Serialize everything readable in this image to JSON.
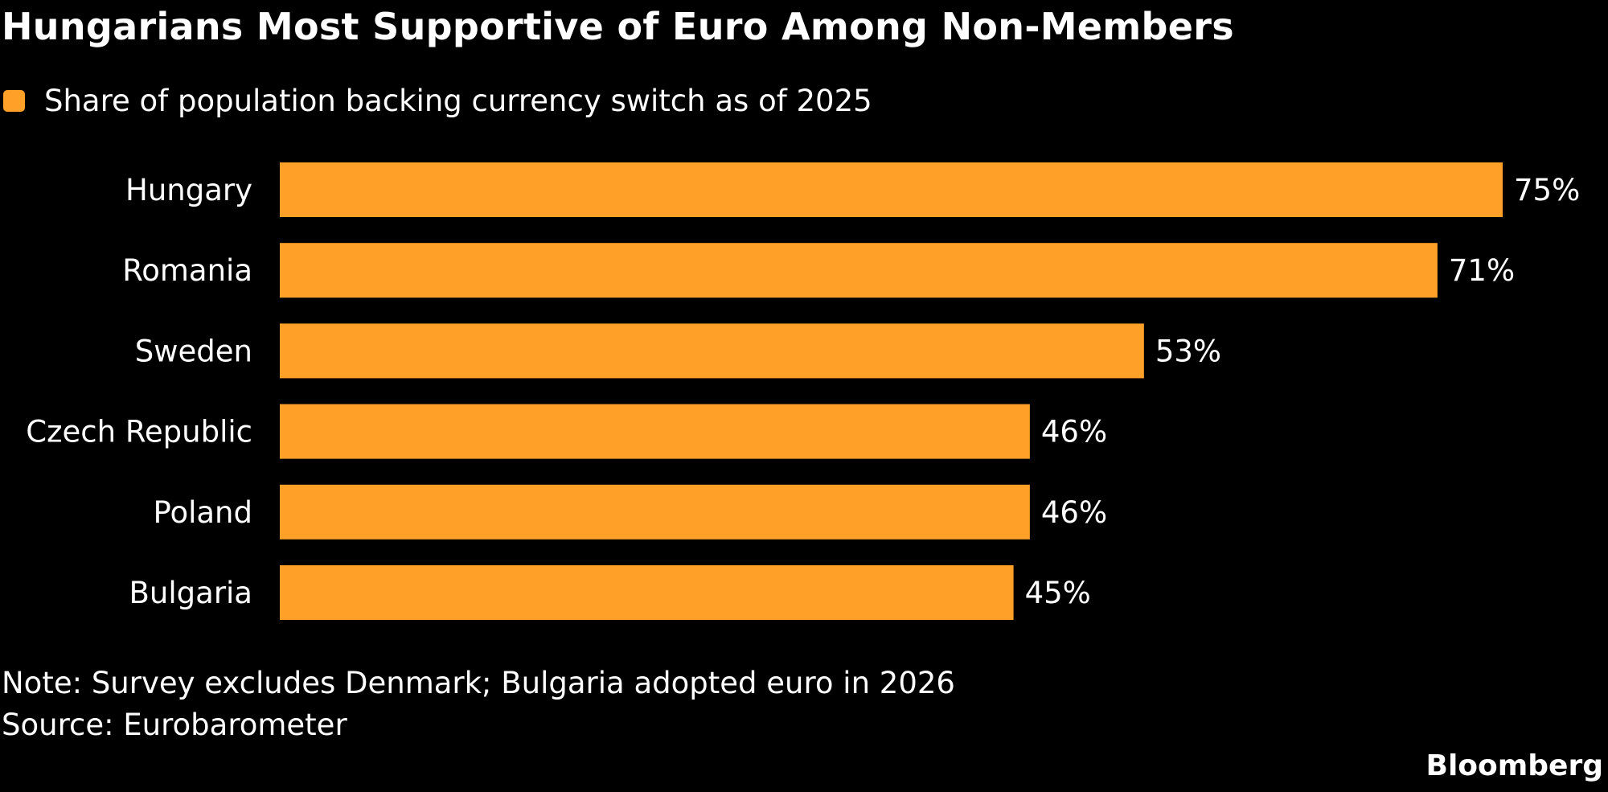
{
  "title": "Hungarians Most Supportive of Euro Among Non-Members",
  "legend": {
    "label": "Share of population backing currency switch as of 2025",
    "color": "#FFA028"
  },
  "footer": {
    "note": "Note: Survey excludes Denmark; Bulgaria adopted euro in 2026",
    "source": "Source: Eurobarometer"
  },
  "brand": "Bloomberg",
  "chart_data": {
    "type": "bar",
    "orientation": "horizontal",
    "title": "Hungarians Most Supportive of Euro Among Non-Members",
    "xlabel": "",
    "ylabel": "",
    "categories": [
      "Hungary",
      "Romania",
      "Sweden",
      "Czech Republic",
      "Poland",
      "Bulgaria"
    ],
    "series": [
      {
        "name": "Share of population backing currency switch as of 2025",
        "color": "#FFA028",
        "values": [
          75,
          71,
          53,
          46,
          46,
          45
        ]
      }
    ],
    "value_labels": [
      "75%",
      "71%",
      "53%",
      "46%",
      "46%",
      "45%"
    ],
    "unit": "%",
    "xlim": [
      0,
      75
    ],
    "grid": false,
    "legend_position": "top-left"
  }
}
